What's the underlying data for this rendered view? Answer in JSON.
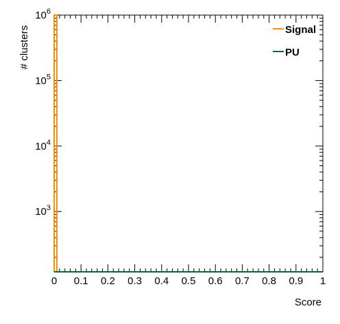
{
  "chart_data": {
    "type": "histogram",
    "xlabel": "Score",
    "ylabel": "# clusters",
    "xlim": [
      0,
      1
    ],
    "ylim": [
      120,
      1000000
    ],
    "yscale": "log",
    "x_ticks": [
      "0",
      "0.1",
      "0.2",
      "0.3",
      "0.4",
      "0.5",
      "0.6",
      "0.7",
      "0.8",
      "0.9",
      "1"
    ],
    "y_ticks": [
      {
        "value": 1000,
        "base": "10",
        "exp": "3"
      },
      {
        "value": 10000,
        "base": "10",
        "exp": "4"
      },
      {
        "value": 100000,
        "base": "10",
        "exp": "5"
      },
      {
        "value": 1000000,
        "base": "10",
        "exp": "6"
      }
    ],
    "grid": false,
    "legend_position": "top-right",
    "series": [
      {
        "name": "Signal",
        "color": "#ff8c00",
        "bins": [
          {
            "x0": 0.0,
            "x1": 0.01,
            "value": 1000000
          }
        ]
      },
      {
        "name": "PU",
        "color": "#006a30",
        "bins": [
          {
            "x0": 0.0,
            "x1": 1.0,
            "value": 120
          }
        ]
      }
    ]
  }
}
